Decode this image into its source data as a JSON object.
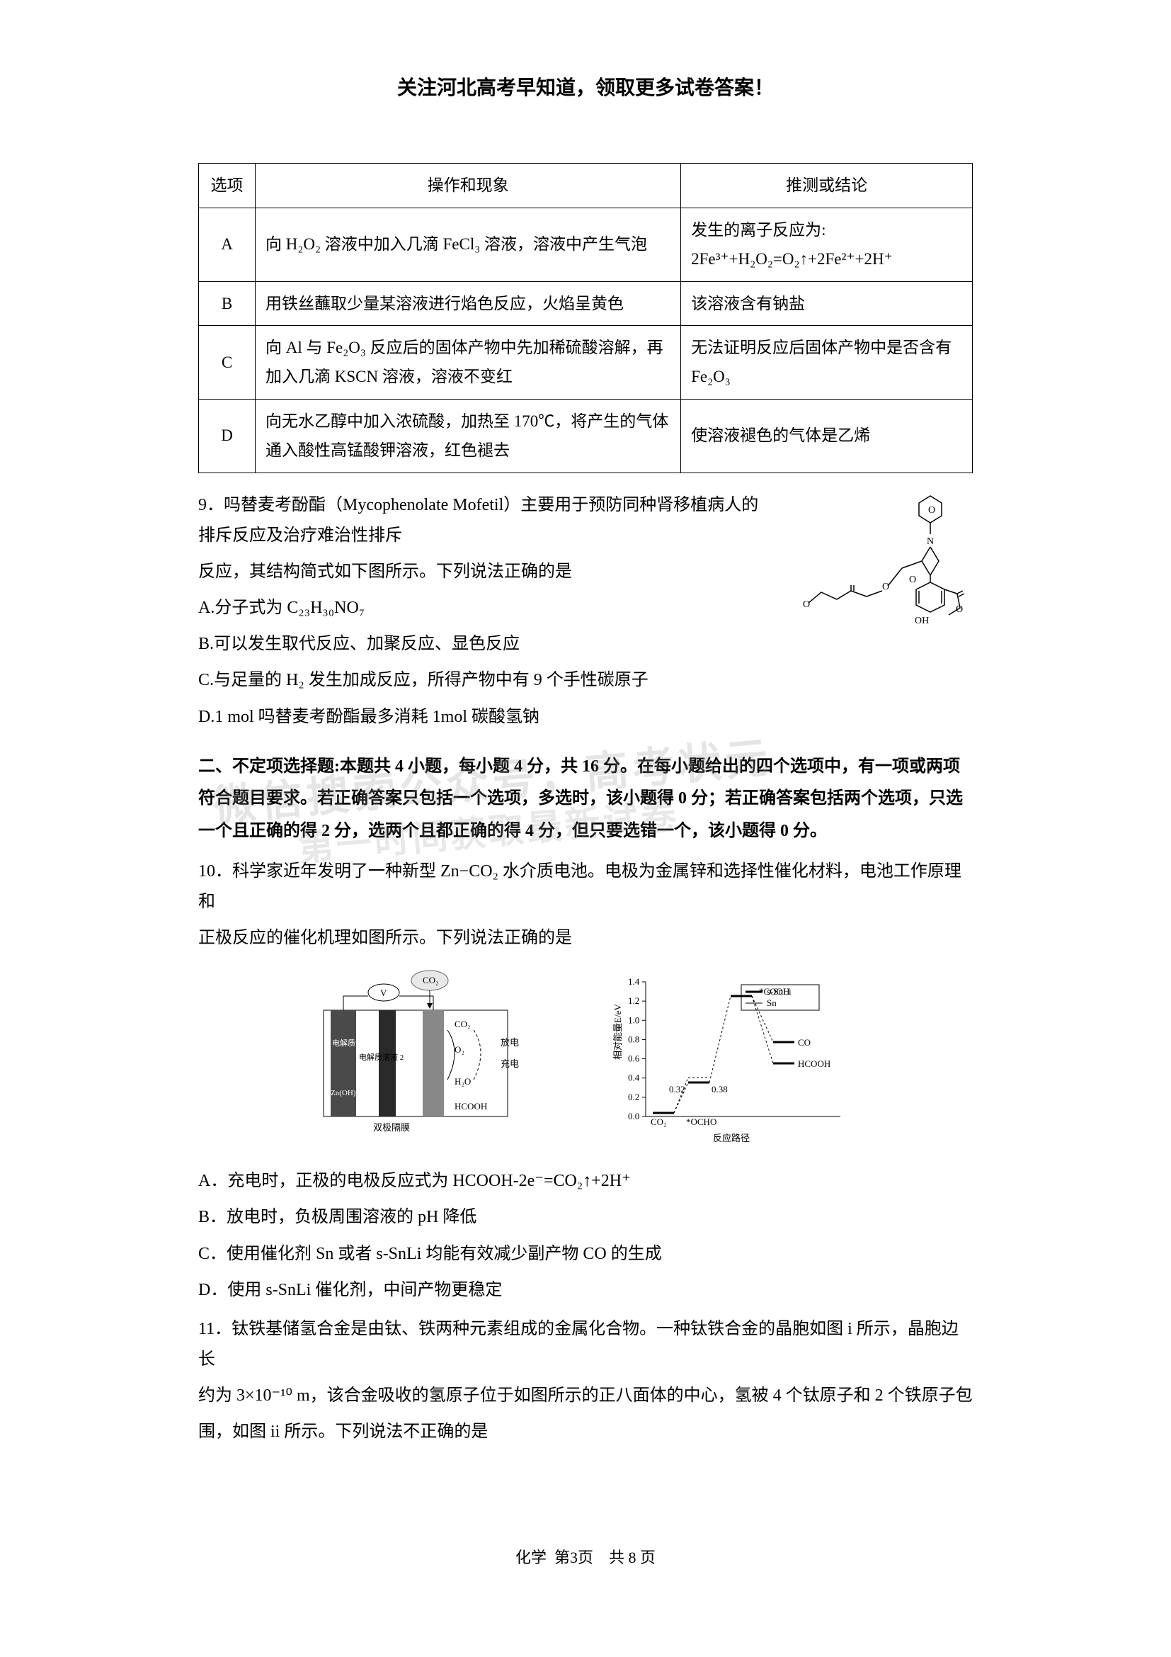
{
  "banner": "关注河北高考早知道，领取更多试卷答案！",
  "table": {
    "headers": {
      "option": "选项",
      "operation": "操作和现象",
      "conclusion": "推测或结论"
    },
    "rows": [
      {
        "opt": "A",
        "op": "向 H₂O₂ 溶液中加入几滴 FeCl₃ 溶液，溶液中产生气泡",
        "conc": "发生的离子反应为:\n2Fe³⁺+H₂O₂=O₂↑+2Fe²⁺+2H⁺"
      },
      {
        "opt": "B",
        "op": "用铁丝蘸取少量某溶液进行焰色反应，火焰呈黄色",
        "conc": "该溶液含有钠盐"
      },
      {
        "opt": "C",
        "op": "向 Al 与 Fe₂O₃ 反应后的固体产物中先加稀硫酸溶解，再加入几滴 KSCN 溶液，溶液不变红",
        "conc": "无法证明反应后固体产物中是否含有 Fe₂O₃"
      },
      {
        "opt": "D",
        "op": "向无水乙醇中加入浓硫酸，加热至 170℃，将产生的气体通入酸性高锰酸钾溶液，红色褪去",
        "conc": "使溶液褪色的气体是乙烯"
      }
    ]
  },
  "q9": {
    "stem1": "9．吗替麦考酚酯（Mycophenolate Mofetil）主要用于预防同种肾移植病人的排斥反应及治疗难治性排斥",
    "stem2": "反应，其结构简式如下图所示。下列说法正确的是",
    "A": "A.分子式为 C₂₃H₃₀NO₇",
    "B": "B.可以发生取代反应、加聚反应、显色反应",
    "C": "C.与足量的 H₂ 发生加成反应，所得产物中有 9 个手性碳原子",
    "D": "D.1 mol 吗替麦考酚酯最多消耗 1mol 碳酸氢钠"
  },
  "section2": {
    "line1": "二、不定项选择题:本题共 4 小题，每小题 4 分，共 16 分。在每小题给出的四个选项中，有一项或两项",
    "line2": "符合题目要求。若正确答案只包括一个选项，多选时，该小题得 0 分；若正确答案包括两个选项，只选",
    "line3": "一个且正确的得 2 分，选两个且都正确的得 4 分，但只要选错一个，该小题得 0 分。"
  },
  "q10": {
    "stem1": "10．科学家近年发明了一种新型 Zn−CO₂ 水介质电池。电极为金属锌和选择性催化材料，电池工作原理和",
    "stem2": "正极反应的催化机理如图所示。下列说法正确的是",
    "A": "A．充电时，正极的电极反应式为 HCOOH-2e⁻=CO₂↑+2H⁺",
    "B": "B．放电时，负极周围溶液的 pH 降低",
    "C": "C．使用催化剂 Sn 或者 s-SnLi 均能有效减少副产物 CO 的生成",
    "D": "D．使用 s-SnLi 催化剂，中间产物更稳定",
    "diagram_left": {
      "labels": {
        "electrolyte1": "电解质溶液 1",
        "electrolyte2": "电解质溶液 2",
        "zn": "Zn(OH)₄²⁻",
        "membrane": "双极隔膜",
        "co2": "CO₂",
        "o2": "O₂",
        "h2o": "H₂O",
        "hcooh": "HCOOH",
        "discharge": "放电",
        "charge": "充电",
        "v": "V"
      },
      "colors": {
        "electrode": "#4a4a4a",
        "membrane": "#2a2a2a",
        "catalyst": "#888888"
      }
    },
    "diagram_right": {
      "type": "line",
      "title_x": "反应路径",
      "ylabel": "相对能量E/eV",
      "ylim": [
        0,
        1.4
      ],
      "ytick_step": 0.2,
      "series": [
        {
          "name": "s-SnLi",
          "color": "#000000",
          "style": "solid"
        },
        {
          "name": "Sn",
          "color": "#000000",
          "style": "dashed"
        }
      ],
      "point_labels": [
        "CO₂",
        "*OCHO",
        "*COOH",
        "CO",
        "HCOOH"
      ],
      "values_ssnli": [
        0.0,
        0.32,
        1.28,
        0.78,
        0.55
      ],
      "values_sn": [
        0.0,
        0.38,
        1.28,
        0.78,
        0.55
      ],
      "annotations": [
        "0.32",
        "0.38"
      ]
    }
  },
  "q11": {
    "stem1": "11．钛铁基储氢合金是由钛、铁两种元素组成的金属化合物。一种钛铁合金的晶胞如图 i 所示，晶胞边长",
    "stem2": "约为 3×10⁻¹⁰ m，该合金吸收的氢原子位于如图所示的正八面体的中心，氢被 4 个钛原子和 2 个铁原子包",
    "stem3": "围，如图 ii 所示。下列说法不正确的是"
  },
  "footer": {
    "subject": "化学",
    "page": "第3页",
    "total": "共 8 页"
  },
  "watermark": {
    "line1": "微信搜索公众号，高考状元",
    "line2": "第一时间获取最新试卷"
  }
}
